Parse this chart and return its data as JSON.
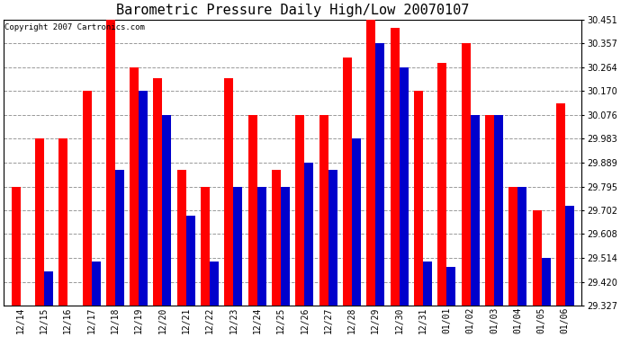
{
  "title": "Barometric Pressure Daily High/Low 20070107",
  "copyright": "Copyright 2007 Cartronics.com",
  "dates": [
    "12/14",
    "12/15",
    "12/16",
    "12/17",
    "12/18",
    "12/19",
    "12/20",
    "12/21",
    "12/22",
    "12/23",
    "12/24",
    "12/25",
    "12/26",
    "12/27",
    "12/28",
    "12/29",
    "12/30",
    "12/31",
    "01/01",
    "01/02",
    "01/03",
    "01/04",
    "01/05",
    "01/06"
  ],
  "highs": [
    29.795,
    29.983,
    29.983,
    30.17,
    30.451,
    30.264,
    30.22,
    29.86,
    29.795,
    30.22,
    30.076,
    29.86,
    30.076,
    30.076,
    30.3,
    30.451,
    30.42,
    30.17,
    30.28,
    30.357,
    30.076,
    29.795,
    29.702,
    30.12
  ],
  "lows": [
    29.327,
    29.46,
    29.327,
    29.5,
    29.86,
    30.17,
    30.076,
    29.68,
    29.5,
    29.795,
    29.795,
    29.795,
    29.889,
    29.86,
    29.983,
    30.357,
    30.264,
    29.5,
    29.48,
    30.076,
    30.076,
    29.795,
    29.514,
    29.72
  ],
  "ymin": 29.327,
  "ymax": 30.451,
  "yticks": [
    29.327,
    29.42,
    29.514,
    29.608,
    29.702,
    29.795,
    29.889,
    29.983,
    30.076,
    30.17,
    30.264,
    30.357,
    30.451
  ],
  "bar_width": 0.38,
  "high_color": "#ff0000",
  "low_color": "#0000cc",
  "bg_color": "#ffffff",
  "grid_color": "#999999",
  "title_fontsize": 11,
  "copyright_fontsize": 6.5,
  "tick_fontsize": 7,
  "figwidth": 6.9,
  "figheight": 3.75,
  "dpi": 100
}
